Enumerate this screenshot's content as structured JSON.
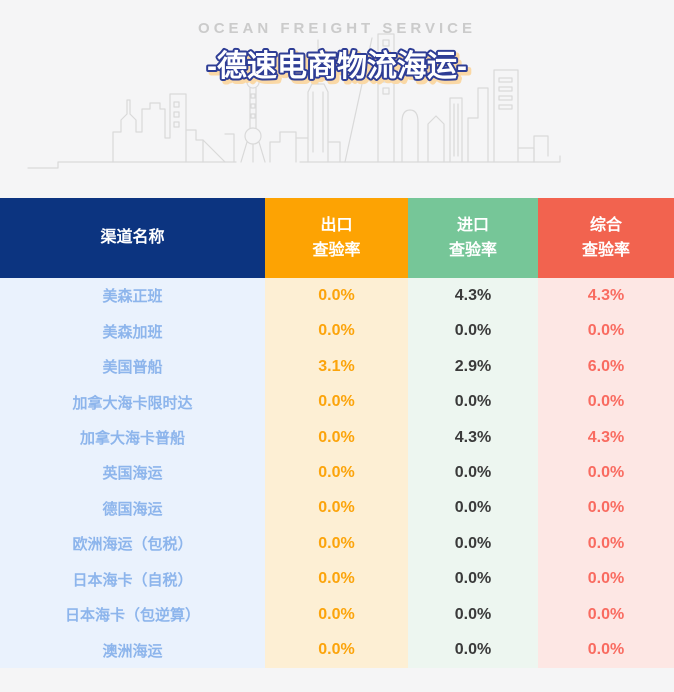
{
  "hero": {
    "subtitle_en": "OCEAN FREIGHT SERVICE",
    "title_cn": "-德速电商物流海运-"
  },
  "table": {
    "headers": [
      {
        "line1": "渠道名称",
        "line2": ""
      },
      {
        "line1": "出口",
        "line2": "查验率"
      },
      {
        "line1": "进口",
        "line2": "查验率"
      },
      {
        "line1": "综合",
        "line2": "查验率"
      }
    ],
    "rows": [
      {
        "channel": "美森正班",
        "export_rate": "0.0%",
        "import_rate": "4.3%",
        "composite_rate": "4.3%"
      },
      {
        "channel": "美森加班",
        "export_rate": "0.0%",
        "import_rate": "0.0%",
        "composite_rate": "0.0%"
      },
      {
        "channel": "美国普船",
        "export_rate": "3.1%",
        "import_rate": "2.9%",
        "composite_rate": "6.0%"
      },
      {
        "channel": "加拿大海卡限时达",
        "export_rate": "0.0%",
        "import_rate": "0.0%",
        "composite_rate": "0.0%"
      },
      {
        "channel": "加拿大海卡普船",
        "export_rate": "0.0%",
        "import_rate": "4.3%",
        "composite_rate": "4.3%"
      },
      {
        "channel": "英国海运",
        "export_rate": "0.0%",
        "import_rate": "0.0%",
        "composite_rate": "0.0%"
      },
      {
        "channel": "德国海运",
        "export_rate": "0.0%",
        "import_rate": "0.0%",
        "composite_rate": "0.0%"
      },
      {
        "channel": "欧洲海运（包税）",
        "export_rate": "0.0%",
        "import_rate": "0.0%",
        "composite_rate": "0.0%"
      },
      {
        "channel": "日本海卡（自税）",
        "export_rate": "0.0%",
        "import_rate": "0.0%",
        "composite_rate": "0.0%"
      },
      {
        "channel": "日本海卡（包逆算）",
        "export_rate": "0.0%",
        "import_rate": "0.0%",
        "composite_rate": "0.0%"
      },
      {
        "channel": "澳洲海运",
        "export_rate": "0.0%",
        "import_rate": "0.0%",
        "composite_rate": "0.0%"
      }
    ]
  },
  "colors": {
    "page_background": "#f5f5f6",
    "header_channel": "#0c3480",
    "header_export": "#fda303",
    "header_import": "#76c698",
    "header_composite": "#f2634f",
    "body_channel_bg": "#eaf2fd",
    "body_export_bg": "#fdefd4",
    "body_import_bg": "#edf6f0",
    "body_composite_bg": "#fde7e4",
    "channel_text": "#8db5ec",
    "export_text": "#fca40b",
    "import_text": "#3a3a3a",
    "composite_text": "#f96b60",
    "title_outline": "#2e3d95",
    "title_shadow": "#fad8a5",
    "subtitle_text": "#cbcbcb",
    "skyline_stroke": "#d9d9d9"
  },
  "chart_data": {
    "type": "table",
    "title": "德速电商物流海运 查验率",
    "subtitle": "OCEAN FREIGHT SERVICE",
    "columns": [
      "渠道名称",
      "出口查验率",
      "进口查验率",
      "综合查验率"
    ],
    "rows": [
      [
        "美森正班",
        "0.0%",
        "4.3%",
        "4.3%"
      ],
      [
        "美森加班",
        "0.0%",
        "0.0%",
        "0.0%"
      ],
      [
        "美国普船",
        "3.1%",
        "2.9%",
        "6.0%"
      ],
      [
        "加拿大海卡限时达",
        "0.0%",
        "0.0%",
        "0.0%"
      ],
      [
        "加拿大海卡普船",
        "0.0%",
        "4.3%",
        "4.3%"
      ],
      [
        "英国海运",
        "0.0%",
        "0.0%",
        "0.0%"
      ],
      [
        "德国海运",
        "0.0%",
        "0.0%",
        "0.0%"
      ],
      [
        "欧洲海运（包税）",
        "0.0%",
        "0.0%",
        "0.0%"
      ],
      [
        "日本海卡（自税）",
        "0.0%",
        "0.0%",
        "0.0%"
      ],
      [
        "日本海卡（包逆算）",
        "0.0%",
        "0.0%",
        "0.0%"
      ],
      [
        "澳洲海运",
        "0.0%",
        "0.0%",
        "0.0%"
      ]
    ]
  }
}
